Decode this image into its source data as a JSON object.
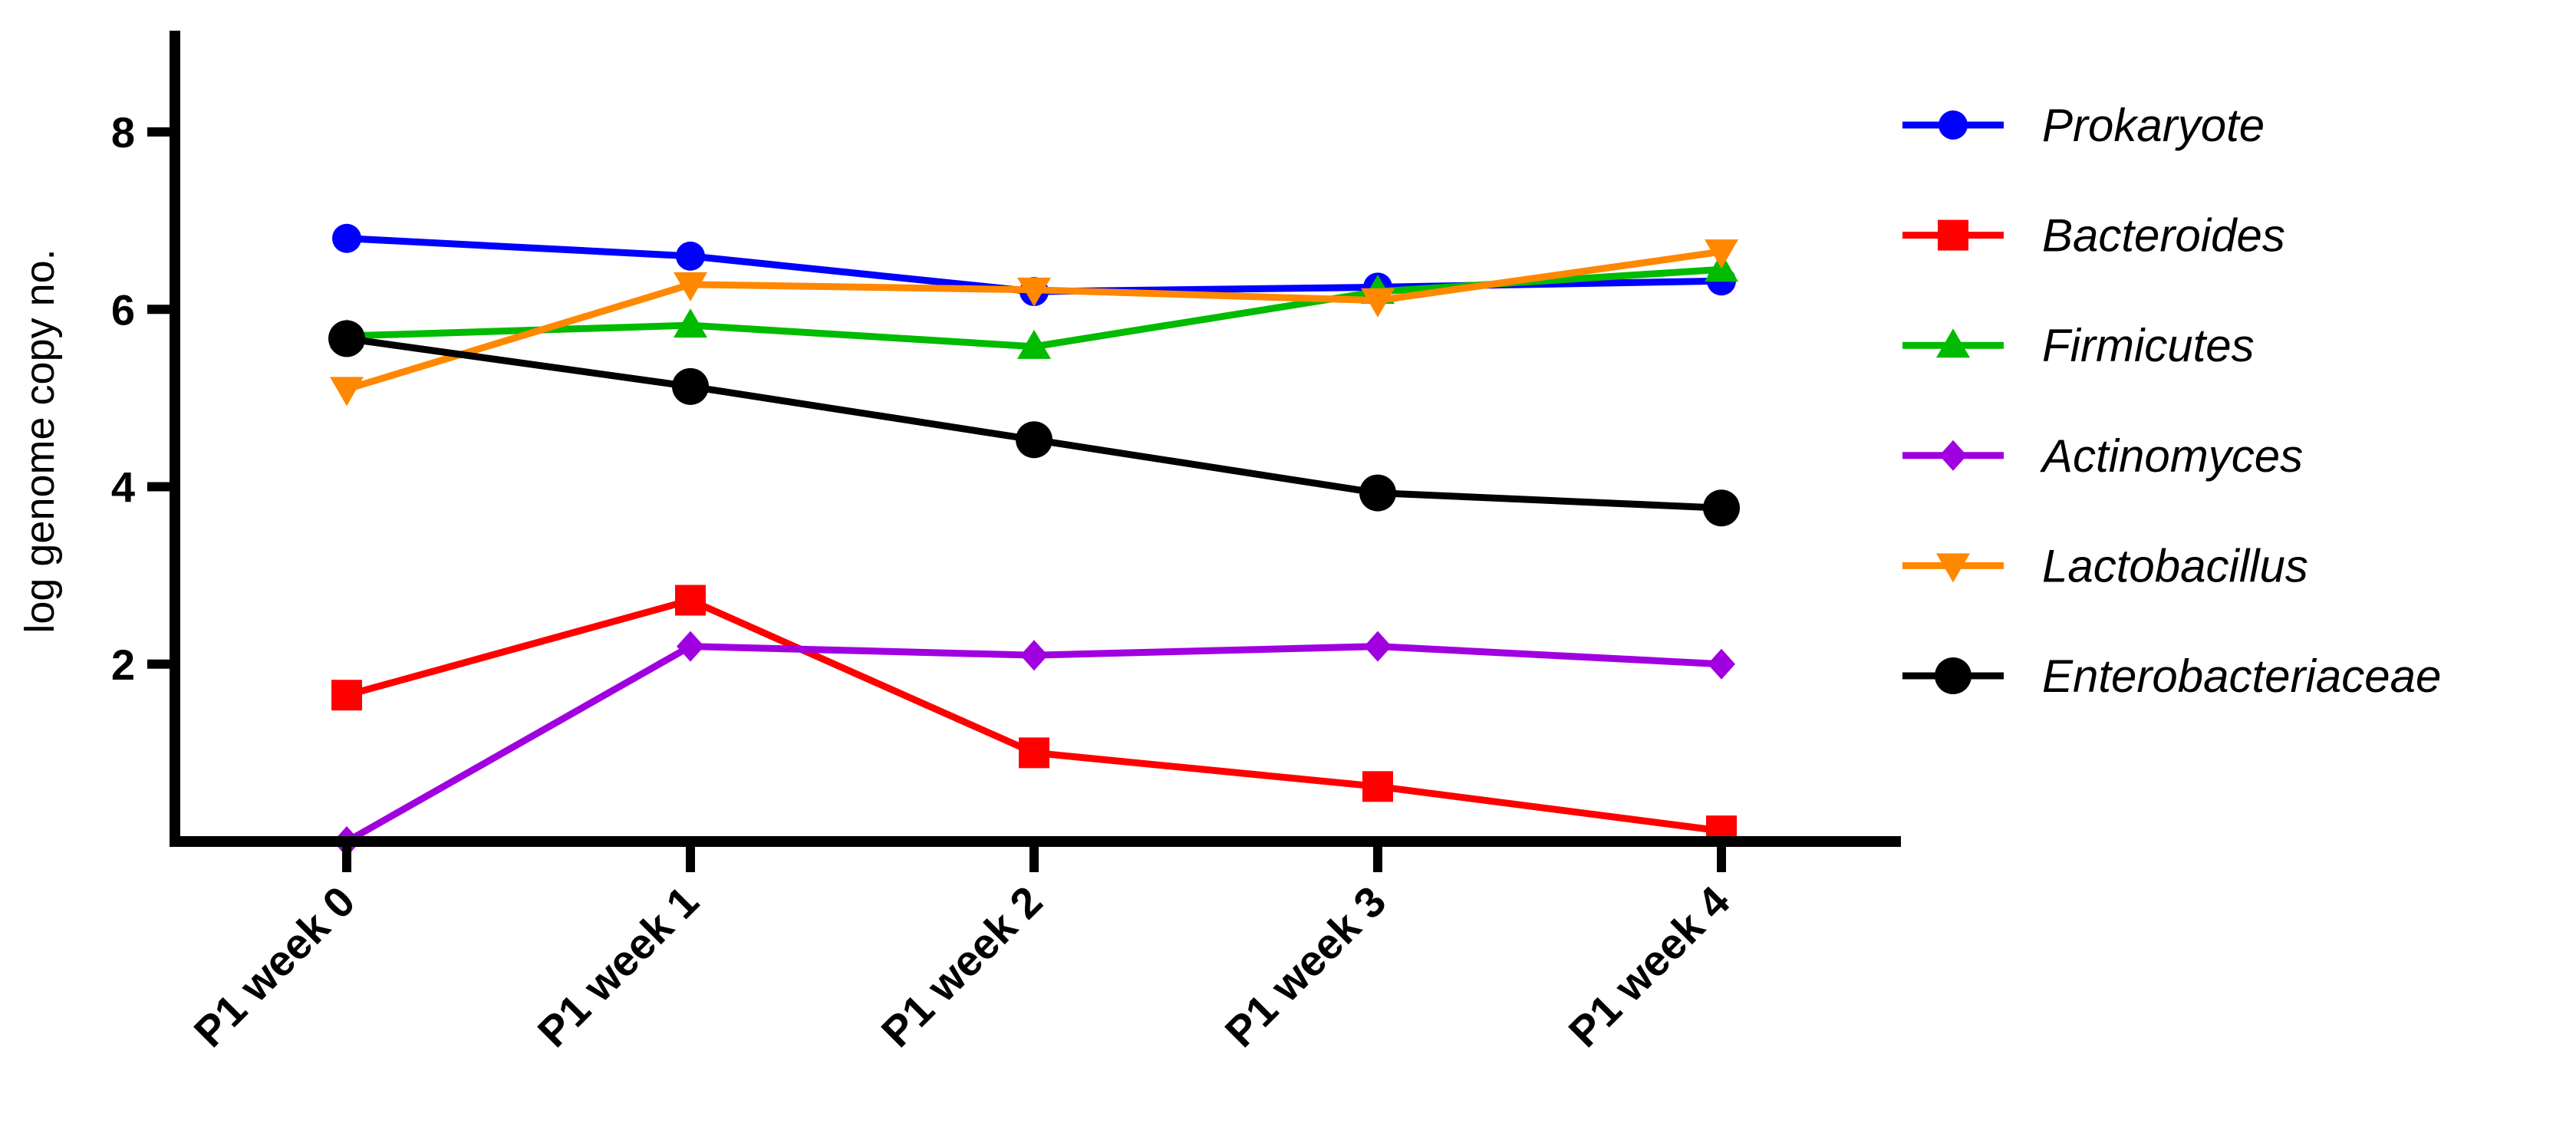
{
  "chart_data": {
    "type": "line",
    "categories": [
      "P1 week 0",
      "P1 week 1",
      "P1 week 2",
      "P1 week 3",
      "P1 week 4"
    ],
    "ylabel": "log genome copy no.",
    "ylim": [
      0,
      9
    ],
    "yticks": [
      2,
      4,
      6,
      8
    ],
    "legend_position": "right",
    "series": [
      {
        "name": "Prokaryote",
        "color": "#0000ff",
        "marker": "circle",
        "values": [
          6.8,
          6.6,
          6.2,
          6.25,
          6.32
        ]
      },
      {
        "name": "Bacteroides",
        "color": "#ff0000",
        "marker": "square",
        "values": [
          1.65,
          2.72,
          1.0,
          0.62,
          0.12
        ]
      },
      {
        "name": "Firmicutes",
        "color": "#00bb00",
        "marker": "triangle-up",
        "values": [
          5.7,
          5.82,
          5.58,
          6.2,
          6.45
        ]
      },
      {
        "name": "Actinomyces",
        "color": "#a000e0",
        "marker": "diamond",
        "values": [
          0.0,
          2.2,
          2.1,
          2.2,
          2.0
        ]
      },
      {
        "name": "Lactobacillus",
        "color": "#ff8800",
        "marker": "triangle-down",
        "values": [
          5.1,
          6.28,
          6.22,
          6.1,
          6.65
        ]
      },
      {
        "name": "Enterobacteriaceae",
        "color": "#000000",
        "marker": "circle-large",
        "values": [
          5.67,
          5.13,
          4.53,
          3.93,
          3.76
        ]
      }
    ]
  }
}
